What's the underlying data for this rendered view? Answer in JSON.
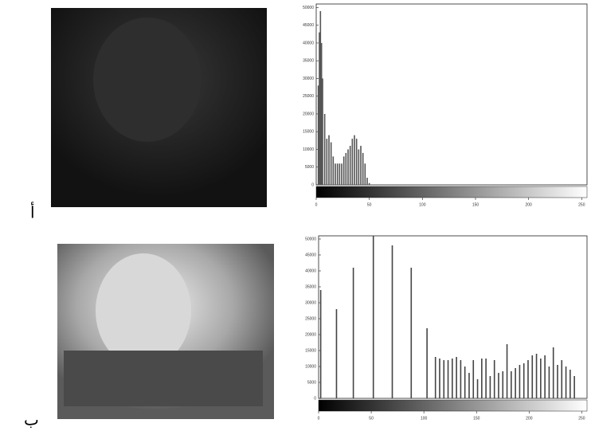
{
  "panel_labels": [
    "أ",
    "ب"
  ],
  "chart_data": [
    {
      "type": "bar",
      "color": "#555555",
      "x": [
        2,
        3,
        4,
        5,
        6,
        8,
        10,
        12,
        14,
        16,
        18,
        20,
        22,
        24,
        26,
        28,
        30,
        32,
        34,
        36,
        38,
        40,
        42,
        44,
        46,
        48,
        50
      ],
      "values": [
        28000,
        43000,
        49000,
        40000,
        30000,
        20000,
        13000,
        14000,
        12000,
        8000,
        6000,
        6000,
        6000,
        6000,
        8000,
        9000,
        10000,
        11000,
        13000,
        14000,
        13000,
        10000,
        11000,
        9000,
        6000,
        2000,
        500
      ],
      "xlim": [
        0,
        255
      ],
      "ylim": [
        0,
        51000
      ],
      "xticks": [
        0,
        50,
        100,
        150,
        200,
        250
      ],
      "yticks": [
        0,
        5000,
        10000,
        15000,
        20000,
        25000,
        30000,
        35000,
        40000,
        45000,
        50000
      ]
    },
    {
      "type": "bar",
      "color": "#444444",
      "x": [
        2,
        17,
        33,
        52,
        70,
        88,
        103,
        111,
        115,
        119,
        123,
        127,
        131,
        135,
        139,
        143,
        147,
        151,
        155,
        159,
        163,
        167,
        171,
        175,
        179,
        183,
        187,
        191,
        195,
        199,
        203,
        207,
        211,
        215,
        219,
        223,
        227,
        231,
        235,
        239,
        243
      ],
      "values": [
        34000,
        28000,
        41000,
        51000,
        48000,
        41000,
        22000,
        13000,
        12500,
        12000,
        12000,
        12500,
        13000,
        12000,
        10000,
        8000,
        12000,
        6000,
        12500,
        12500,
        7000,
        12000,
        8000,
        8500,
        17000,
        8500,
        9500,
        10500,
        11000,
        12000,
        13500,
        14000,
        12500,
        13500,
        10000,
        16000,
        10500,
        12000,
        10000,
        9000,
        7000
      ],
      "xlim": [
        0,
        255
      ],
      "ylim": [
        0,
        51000
      ],
      "xticks": [
        0,
        50,
        100,
        150,
        200,
        250
      ],
      "yticks": [
        0,
        5000,
        10000,
        15000,
        20000,
        25000,
        30000,
        35000,
        40000,
        45000,
        50000
      ]
    }
  ]
}
